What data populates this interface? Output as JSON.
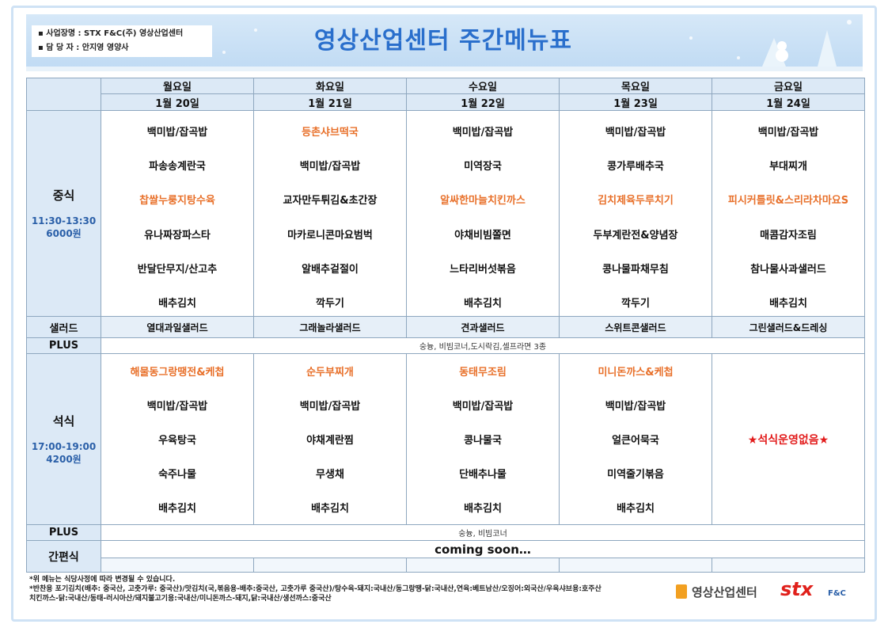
{
  "header": {
    "bullets": [
      "사업장명 : STX F&C(주) 영상산업센터",
      "담 당 자 : 안지영 영양사"
    ],
    "title": "영상산업센터 주간메뉴표"
  },
  "table": {
    "days": [
      {
        "name": "월요일",
        "date": "1월 20일"
      },
      {
        "name": "화요일",
        "date": "1월 21일"
      },
      {
        "name": "수요일",
        "date": "1월 22일"
      },
      {
        "name": "목요일",
        "date": "1월 23일"
      },
      {
        "name": "금요일",
        "date": "1월 24일"
      }
    ],
    "lunch": {
      "label": "중식",
      "time": "11:30-13:30",
      "price": "6000원",
      "days": [
        [
          {
            "text": "백미밥/잡곡밥",
            "special": false
          },
          {
            "text": "파송송계란국",
            "special": false
          },
          {
            "text": "찹쌀누룽지탕수육",
            "special": true
          },
          {
            "text": "유나짜장파스타",
            "special": false
          },
          {
            "text": "반달단무지/산고추",
            "special": false
          },
          {
            "text": "배추김치",
            "special": false
          }
        ],
        [
          {
            "text": "등촌샤브떡국",
            "special": true
          },
          {
            "text": "백미밥/잡곡밥",
            "special": false
          },
          {
            "text": "교자만두튀김&초간장",
            "special": false
          },
          {
            "text": "마카로니콘마요범벅",
            "special": false
          },
          {
            "text": "알배추겉절이",
            "special": false
          },
          {
            "text": "깍두기",
            "special": false
          }
        ],
        [
          {
            "text": "백미밥/잡곡밥",
            "special": false
          },
          {
            "text": "미역장국",
            "special": false
          },
          {
            "text": "알싸한마늘치킨까스",
            "special": true
          },
          {
            "text": "야채비빔쫄면",
            "special": false
          },
          {
            "text": "느타리버섯볶음",
            "special": false
          },
          {
            "text": "배추김치",
            "special": false
          }
        ],
        [
          {
            "text": "백미밥/잡곡밥",
            "special": false
          },
          {
            "text": "콩가루배추국",
            "special": false
          },
          {
            "text": "김치제육두루치기",
            "special": true
          },
          {
            "text": "두부계란전&양념장",
            "special": false
          },
          {
            "text": "콩나물파채무침",
            "special": false
          },
          {
            "text": "깍두기",
            "special": false
          }
        ],
        [
          {
            "text": "백미밥/잡곡밥",
            "special": false
          },
          {
            "text": "부대찌개",
            "special": false
          },
          {
            "text": "피시커틀릿&스리라차마요S",
            "special": true
          },
          {
            "text": "매콤감자조림",
            "special": false
          },
          {
            "text": "참나물사과샐러드",
            "special": false
          },
          {
            "text": "배추김치",
            "special": false
          }
        ]
      ]
    },
    "salad": {
      "label": "샐러드",
      "items": [
        "열대과일샐러드",
        "그래놀라샐러드",
        "견과샐러드",
        "스위트콘샐러드",
        "그린샐러드&드레싱"
      ]
    },
    "lunch_plus": {
      "label": "PLUS",
      "text": "숭늉, 비빔코너,도시락김,셀프라면 3종"
    },
    "dinner": {
      "label": "석식",
      "time": "17:00-19:00",
      "price": "4200원",
      "days": [
        {
          "items": [
            {
              "text": "해물동그랑땡전&케첩",
              "special": true
            },
            {
              "text": "백미밥/잡곡밥",
              "special": false
            },
            {
              "text": "우육탕국",
              "special": false
            },
            {
              "text": "숙주나물",
              "special": false
            },
            {
              "text": "배추김치",
              "special": false
            }
          ]
        },
        {
          "items": [
            {
              "text": "순두부찌개",
              "special": true
            },
            {
              "text": "백미밥/잡곡밥",
              "special": false
            },
            {
              "text": "야채계란찜",
              "special": false
            },
            {
              "text": "무생채",
              "special": false
            },
            {
              "text": "배추김치",
              "special": false
            }
          ]
        },
        {
          "items": [
            {
              "text": "동태무조림",
              "special": true
            },
            {
              "text": "백미밥/잡곡밥",
              "special": false
            },
            {
              "text": "콩나물국",
              "special": false
            },
            {
              "text": "단배추나물",
              "special": false
            },
            {
              "text": "배추김치",
              "special": false
            }
          ]
        },
        {
          "items": [
            {
              "text": "미니돈까스&케첩",
              "special": true
            },
            {
              "text": "백미밥/잡곡밥",
              "special": false
            },
            {
              "text": "얼큰어묵국",
              "special": false
            },
            {
              "text": "미역줄기볶음",
              "special": false
            },
            {
              "text": "배추김치",
              "special": false
            }
          ]
        },
        {
          "notice": "★석식운영없음★"
        }
      ]
    },
    "dinner_plus": {
      "label": "PLUS",
      "text": "숭늉, 비빔코너"
    },
    "simple": {
      "label": "간편식",
      "text": "coming soon…"
    }
  },
  "footnotes": [
    "*위 메뉴는 식당사정에 따라 변경될 수 있습니다.",
    "*반찬용 포기김치(배추: 중국산, 고춧가루: 중국산)/맛김치(국,볶음용-배추:중국산, 고춧가루 중국산)/탕수육-돼지:국내산/동그랑땡-닭:국내산,연육:베트남산/오징어:외국산/우육샤브용:호주산",
    " 치킨까스-닭:국내산/동태-러시아산/돼지불고기용:국내산/미니돈까스-돼지,닭:국내산/생선까스:중국산"
  ],
  "logos": {
    "center": "영상산업센터",
    "stx": "stx",
    "fc": "F&C"
  }
}
